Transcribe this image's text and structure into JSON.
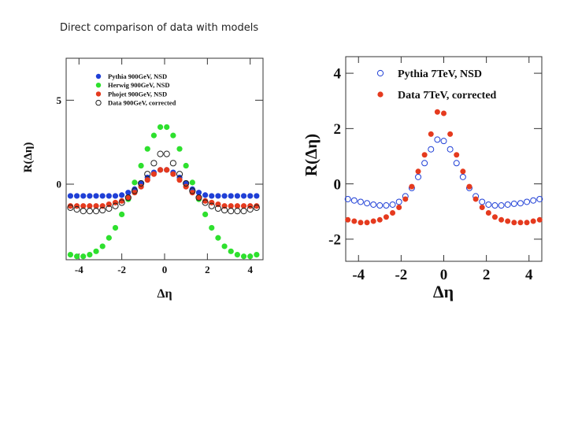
{
  "slide": {
    "title": "Direct comparison of data with models"
  },
  "chart_data": [
    {
      "type": "scatter",
      "title": "",
      "xlabel": "Δη",
      "ylabel": "R(Δη)",
      "xlim": [
        -4.6,
        4.6
      ],
      "ylim": [
        -4.5,
        7.5
      ],
      "x_ticks": [
        "-4",
        "-2",
        "0",
        "2",
        "4"
      ],
      "y_ticks": [
        "0",
        "5"
      ],
      "legend_position": "top-left",
      "series": [
        {
          "name": "Pythia 900GeV, NSD",
          "marker": "filled-circle",
          "color": "#1f3fd6",
          "x": [
            -4.4,
            -4.1,
            -3.8,
            -3.5,
            -3.2,
            -2.9,
            -2.6,
            -2.3,
            -2.0,
            -1.7,
            -1.4,
            -1.1,
            -0.8,
            -0.5,
            -0.2,
            0.1,
            0.4,
            0.7,
            1.0,
            1.3,
            1.6,
            1.9,
            2.2,
            2.5,
            2.8,
            3.1,
            3.4,
            3.7,
            4.0,
            4.3
          ],
          "y": [
            -0.7,
            -0.7,
            -0.7,
            -0.7,
            -0.7,
            -0.7,
            -0.7,
            -0.7,
            -0.65,
            -0.5,
            -0.3,
            0.05,
            0.4,
            0.7,
            0.85,
            0.85,
            0.7,
            0.4,
            0.05,
            -0.3,
            -0.5,
            -0.65,
            -0.7,
            -0.7,
            -0.7,
            -0.7,
            -0.7,
            -0.7,
            -0.7,
            -0.7
          ]
        },
        {
          "name": "Herwig 900GeV, NSD",
          "marker": "filled-circle",
          "color": "#2ee02e",
          "x": [
            -4.4,
            -4.1,
            -3.8,
            -3.5,
            -3.2,
            -2.9,
            -2.6,
            -2.3,
            -2.0,
            -1.7,
            -1.4,
            -1.1,
            -0.8,
            -0.5,
            -0.2,
            0.1,
            0.4,
            0.7,
            1.0,
            1.3,
            1.6,
            1.9,
            2.2,
            2.5,
            2.8,
            3.1,
            3.4,
            3.7,
            4.0,
            4.3
          ],
          "y": [
            -4.2,
            -4.3,
            -4.3,
            -4.2,
            -4.0,
            -3.7,
            -3.2,
            -2.6,
            -1.8,
            -0.9,
            0.1,
            1.1,
            2.1,
            2.9,
            3.4,
            3.4,
            2.9,
            2.1,
            1.1,
            0.1,
            -0.9,
            -1.8,
            -2.6,
            -3.2,
            -3.7,
            -4.0,
            -4.2,
            -4.3,
            -4.3,
            -4.2
          ]
        },
        {
          "name": "Phojet 900GeV, NSD",
          "marker": "filled-circle",
          "color": "#e53a1e",
          "x": [
            -4.4,
            -4.1,
            -3.8,
            -3.5,
            -3.2,
            -2.9,
            -2.6,
            -2.3,
            -2.0,
            -1.7,
            -1.4,
            -1.1,
            -0.8,
            -0.5,
            -0.2,
            0.1,
            0.4,
            0.7,
            1.0,
            1.3,
            1.6,
            1.9,
            2.2,
            2.5,
            2.8,
            3.1,
            3.4,
            3.7,
            4.0,
            4.3
          ],
          "y": [
            -1.3,
            -1.3,
            -1.3,
            -1.3,
            -1.3,
            -1.3,
            -1.2,
            -1.1,
            -1.0,
            -0.8,
            -0.5,
            -0.15,
            0.25,
            0.6,
            0.85,
            0.85,
            0.6,
            0.25,
            -0.15,
            -0.5,
            -0.8,
            -1.0,
            -1.1,
            -1.2,
            -1.3,
            -1.3,
            -1.3,
            -1.3,
            -1.3,
            -1.3
          ]
        },
        {
          "name": "Data 900GeV, corrected",
          "marker": "open-circle",
          "color": "#222222",
          "x": [
            -4.4,
            -4.1,
            -3.8,
            -3.5,
            -3.2,
            -2.9,
            -2.6,
            -2.3,
            -2.0,
            -1.7,
            -1.4,
            -1.1,
            -0.8,
            -0.5,
            -0.2,
            0.1,
            0.4,
            0.7,
            1.0,
            1.3,
            1.6,
            1.9,
            2.2,
            2.5,
            2.8,
            3.1,
            3.4,
            3.7,
            4.0,
            4.3
          ],
          "y": [
            -1.4,
            -1.5,
            -1.6,
            -1.6,
            -1.6,
            -1.55,
            -1.45,
            -1.3,
            -1.1,
            -0.8,
            -0.4,
            0.05,
            0.6,
            1.25,
            1.8,
            1.8,
            1.25,
            0.6,
            0.05,
            -0.4,
            -0.8,
            -1.1,
            -1.3,
            -1.45,
            -1.55,
            -1.6,
            -1.6,
            -1.6,
            -1.5,
            -1.4
          ]
        }
      ]
    },
    {
      "type": "scatter",
      "title": "",
      "xlabel": "Δη",
      "ylabel": "R(Δη)",
      "xlim": [
        -4.6,
        4.6
      ],
      "ylim": [
        -2.8,
        4.6
      ],
      "x_ticks": [
        "-4",
        "-2",
        "0",
        "2",
        "4"
      ],
      "y_ticks": [
        "-2",
        "0",
        "2",
        "4"
      ],
      "legend_position": "top-right",
      "series": [
        {
          "name": "Pythia 7TeV, NSD",
          "marker": "open-circle",
          "color": "#1f3fd6",
          "x": [
            -4.5,
            -4.2,
            -3.9,
            -3.6,
            -3.3,
            -3.0,
            -2.7,
            -2.4,
            -2.1,
            -1.8,
            -1.5,
            -1.2,
            -0.9,
            -0.6,
            -0.3,
            0.0,
            0.3,
            0.6,
            0.9,
            1.2,
            1.5,
            1.8,
            2.1,
            2.4,
            2.7,
            3.0,
            3.3,
            3.6,
            3.9,
            4.2,
            4.5
          ],
          "y": [
            -0.55,
            -0.6,
            -0.65,
            -0.7,
            -0.75,
            -0.78,
            -0.78,
            -0.75,
            -0.65,
            -0.45,
            -0.15,
            0.25,
            0.75,
            1.25,
            1.6,
            1.55,
            1.25,
            0.75,
            0.25,
            -0.15,
            -0.45,
            -0.65,
            -0.75,
            -0.78,
            -0.78,
            -0.75,
            -0.72,
            -0.7,
            -0.65,
            -0.6,
            -0.55
          ]
        },
        {
          "name": "Data 7TeV, corrected",
          "marker": "filled-circle",
          "color": "#e53a1e",
          "x": [
            -4.5,
            -4.2,
            -3.9,
            -3.6,
            -3.3,
            -3.0,
            -2.7,
            -2.4,
            -2.1,
            -1.8,
            -1.5,
            -1.2,
            -0.9,
            -0.6,
            -0.3,
            0.0,
            0.3,
            0.6,
            0.9,
            1.2,
            1.5,
            1.8,
            2.1,
            2.4,
            2.7,
            3.0,
            3.3,
            3.6,
            3.9,
            4.2,
            4.5
          ],
          "y": [
            -1.3,
            -1.35,
            -1.4,
            -1.4,
            -1.35,
            -1.3,
            -1.2,
            -1.05,
            -0.85,
            -0.55,
            -0.1,
            0.45,
            1.05,
            1.8,
            2.6,
            2.55,
            1.8,
            1.05,
            0.45,
            -0.1,
            -0.55,
            -0.85,
            -1.05,
            -1.2,
            -1.3,
            -1.35,
            -1.4,
            -1.4,
            -1.4,
            -1.35,
            -1.3
          ]
        }
      ]
    }
  ]
}
